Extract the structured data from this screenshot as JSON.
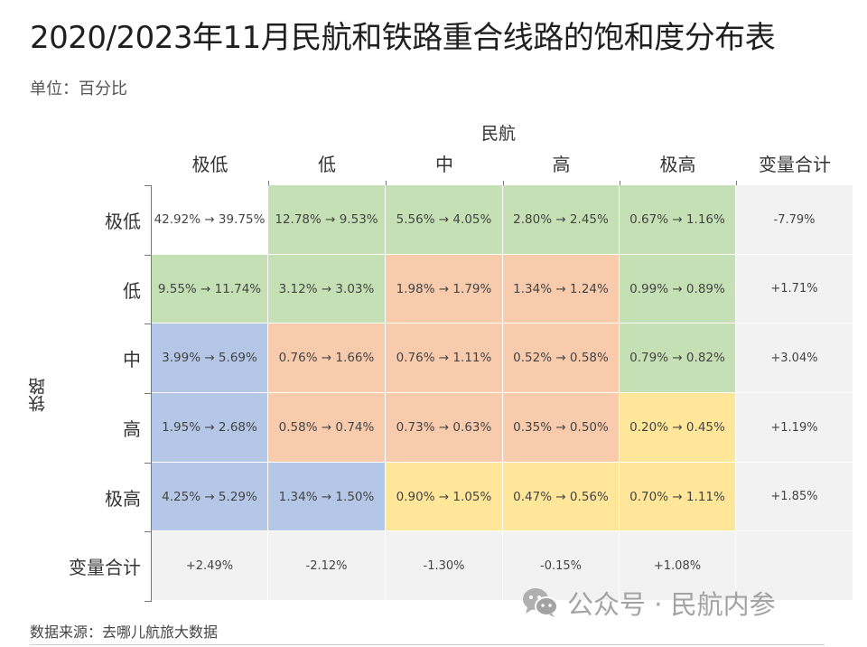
{
  "header": {
    "title": "2020/2023年11月民航和铁路重合线路的饱和度分布表",
    "unit": "单位：百分比"
  },
  "axes": {
    "col_title": "民航",
    "row_title": "铁路"
  },
  "columns": [
    "极低",
    "低",
    "中",
    "高",
    "极高",
    "变量合计"
  ],
  "rows": [
    "极低",
    "低",
    "中",
    "高",
    "极高",
    "变量合计"
  ],
  "colors": {
    "white": "#ffffff",
    "green": "#c5e0b4",
    "orange": "#f8cbad",
    "blue": "#b4c7e7",
    "yellow": "#ffe699",
    "gray": "#f2f2f2"
  },
  "cells": [
    [
      {
        "text": "42.92% → 39.75%",
        "color": "white"
      },
      {
        "text": "12.78% → 9.53%",
        "color": "green"
      },
      {
        "text": "5.56% → 4.05%",
        "color": "green"
      },
      {
        "text": "2.80% → 2.45%",
        "color": "green"
      },
      {
        "text": "0.67% → 1.16%",
        "color": "green"
      },
      {
        "text": "-7.79%",
        "color": "gray"
      }
    ],
    [
      {
        "text": "9.55% → 11.74%",
        "color": "green"
      },
      {
        "text": "3.12% → 3.03%",
        "color": "green"
      },
      {
        "text": "1.98% → 1.79%",
        "color": "orange"
      },
      {
        "text": "1.34% → 1.24%",
        "color": "orange"
      },
      {
        "text": "0.99% → 0.89%",
        "color": "green"
      },
      {
        "text": "+1.71%",
        "color": "gray"
      }
    ],
    [
      {
        "text": "3.99% → 5.69%",
        "color": "blue"
      },
      {
        "text": "0.76% → 1.66%",
        "color": "orange"
      },
      {
        "text": "0.76% → 1.11%",
        "color": "orange"
      },
      {
        "text": "0.52% → 0.58%",
        "color": "orange"
      },
      {
        "text": "0.79% → 0.82%",
        "color": "green"
      },
      {
        "text": "+3.04%",
        "color": "gray"
      }
    ],
    [
      {
        "text": "1.95% → 2.68%",
        "color": "blue"
      },
      {
        "text": "0.58% → 0.74%",
        "color": "orange"
      },
      {
        "text": "0.73% → 0.63%",
        "color": "orange"
      },
      {
        "text": "0.35% → 0.50%",
        "color": "orange"
      },
      {
        "text": "0.20% → 0.45%",
        "color": "yellow"
      },
      {
        "text": "+1.19%",
        "color": "gray"
      }
    ],
    [
      {
        "text": "4.25% → 5.29%",
        "color": "blue"
      },
      {
        "text": "1.34% → 1.50%",
        "color": "blue"
      },
      {
        "text": "0.90% → 1.05%",
        "color": "yellow"
      },
      {
        "text": "0.47% → 0.56%",
        "color": "yellow"
      },
      {
        "text": "0.70% → 1.11%",
        "color": "yellow"
      },
      {
        "text": "+1.85%",
        "color": "gray"
      }
    ],
    [
      {
        "text": "+2.49%",
        "color": "gray"
      },
      {
        "text": "-2.12%",
        "color": "gray"
      },
      {
        "text": "-1.30%",
        "color": "gray"
      },
      {
        "text": "-0.15%",
        "color": "gray"
      },
      {
        "text": "+1.08%",
        "color": "gray"
      },
      {
        "text": "",
        "color": "gray"
      }
    ]
  ],
  "footer": {
    "source": "数据来源：去哪儿航旅大数据",
    "watermark": "公众号 · 民航内参"
  },
  "chart_data": {
    "type": "table",
    "title": "2020/2023年11月民航和铁路重合线路的饱和度分布表",
    "subtitle": "单位：百分比",
    "xlabel": "民航",
    "ylabel": "铁路",
    "categories": [
      "极低",
      "低",
      "中",
      "高",
      "极高"
    ],
    "row_categories": [
      "极低",
      "低",
      "中",
      "高",
      "极高"
    ],
    "series": [
      {
        "name": "2020",
        "values": [
          [
            42.92,
            12.78,
            5.56,
            2.8,
            0.67
          ],
          [
            9.55,
            3.12,
            1.98,
            1.34,
            0.99
          ],
          [
            3.99,
            0.76,
            0.76,
            0.52,
            0.79
          ],
          [
            1.95,
            0.58,
            0.73,
            0.35,
            0.2
          ],
          [
            4.25,
            1.34,
            0.9,
            0.47,
            0.7
          ]
        ]
      },
      {
        "name": "2023",
        "values": [
          [
            39.75,
            9.53,
            4.05,
            2.45,
            1.16
          ],
          [
            11.74,
            3.03,
            1.79,
            1.24,
            0.89
          ],
          [
            5.69,
            1.66,
            1.11,
            0.58,
            0.82
          ],
          [
            2.68,
            0.74,
            0.63,
            0.5,
            0.45
          ],
          [
            5.29,
            1.5,
            1.05,
            0.56,
            1.11
          ]
        ]
      }
    ],
    "row_change_totals": [
      -7.79,
      1.71,
      3.04,
      1.19,
      1.85
    ],
    "col_change_totals": [
      2.49,
      -2.12,
      -1.3,
      -0.15,
      1.08
    ],
    "totals_label": "变量合计",
    "source": "数据来源：去哪儿航旅大数据"
  }
}
